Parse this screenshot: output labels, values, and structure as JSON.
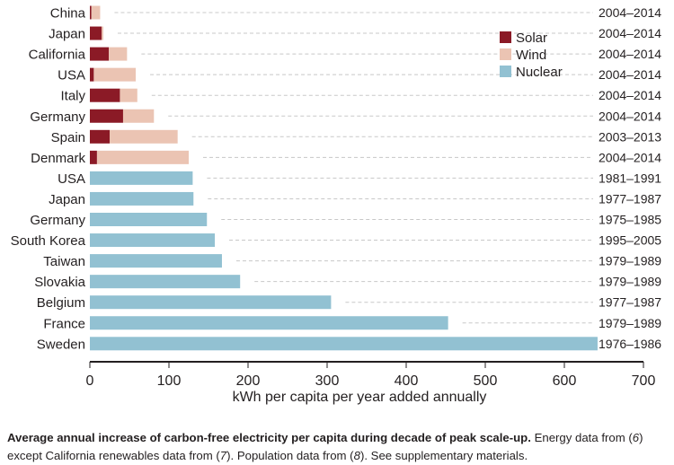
{
  "chart_data": {
    "type": "bar",
    "orientation": "horizontal",
    "stacked": true,
    "title": "",
    "xlabel": "kWh per capita per year added annually",
    "ylabel": "",
    "xlim": [
      0,
      700
    ],
    "xticks": [
      0,
      100,
      200,
      300,
      400,
      500,
      600,
      700
    ],
    "grid": false,
    "legend_position": "top-right",
    "series": [
      {
        "name": "Solar",
        "color": "#8b1a26"
      },
      {
        "name": "Wind",
        "color": "#ebc4b3"
      },
      {
        "name": "Nuclear",
        "color": "#92c1d2"
      }
    ],
    "rows": [
      {
        "label": "China",
        "period": "2004–2014",
        "Solar": 2,
        "Wind": 11,
        "Nuclear": 0
      },
      {
        "label": "Japan",
        "period": "2004–2014",
        "Solar": 15,
        "Wind": 2,
        "Nuclear": 0
      },
      {
        "label": "California",
        "period": "2004–2014",
        "Solar": 24,
        "Wind": 23,
        "Nuclear": 0
      },
      {
        "label": "USA",
        "period": "2004–2014",
        "Solar": 5,
        "Wind": 53,
        "Nuclear": 0
      },
      {
        "label": "Italy",
        "period": "2004–2014",
        "Solar": 38,
        "Wind": 22,
        "Nuclear": 0
      },
      {
        "label": "Germany",
        "period": "2004–2014",
        "Solar": 42,
        "Wind": 39,
        "Nuclear": 0
      },
      {
        "label": "Spain",
        "period": "2003–2013",
        "Solar": 25,
        "Wind": 86,
        "Nuclear": 0
      },
      {
        "label": "Denmark",
        "period": "2004–2014",
        "Solar": 9,
        "Wind": 116,
        "Nuclear": 0
      },
      {
        "label": "USA",
        "period": "1981–1991",
        "Solar": 0,
        "Wind": 0,
        "Nuclear": 130
      },
      {
        "label": "Japan",
        "period": "1977–1987",
        "Solar": 0,
        "Wind": 0,
        "Nuclear": 131
      },
      {
        "label": "Germany",
        "period": "1975–1985",
        "Solar": 0,
        "Wind": 0,
        "Nuclear": 148
      },
      {
        "label": "South Korea",
        "period": "1995–2005",
        "Solar": 0,
        "Wind": 0,
        "Nuclear": 158
      },
      {
        "label": "Taiwan",
        "period": "1979–1989",
        "Solar": 0,
        "Wind": 0,
        "Nuclear": 167
      },
      {
        "label": "Slovakia",
        "period": "1979–1989",
        "Solar": 0,
        "Wind": 0,
        "Nuclear": 190
      },
      {
        "label": "Belgium",
        "period": "1977–1987",
        "Solar": 0,
        "Wind": 0,
        "Nuclear": 305
      },
      {
        "label": "France",
        "period": "1979–1989",
        "Solar": 0,
        "Wind": 0,
        "Nuclear": 453
      },
      {
        "label": "Sweden",
        "period": "1976–1986",
        "Solar": 0,
        "Wind": 0,
        "Nuclear": 642
      }
    ]
  },
  "caption": {
    "bold": "Average annual increase of carbon-free electricity per capita during decade of peak scale-up.",
    "part1": " Energy data from (",
    "ref6": "6",
    "part2": ") except California renewables data from (",
    "ref7": "7",
    "part3": "). Population data from (",
    "ref8": "8",
    "part4": "). See supplementary materials."
  }
}
